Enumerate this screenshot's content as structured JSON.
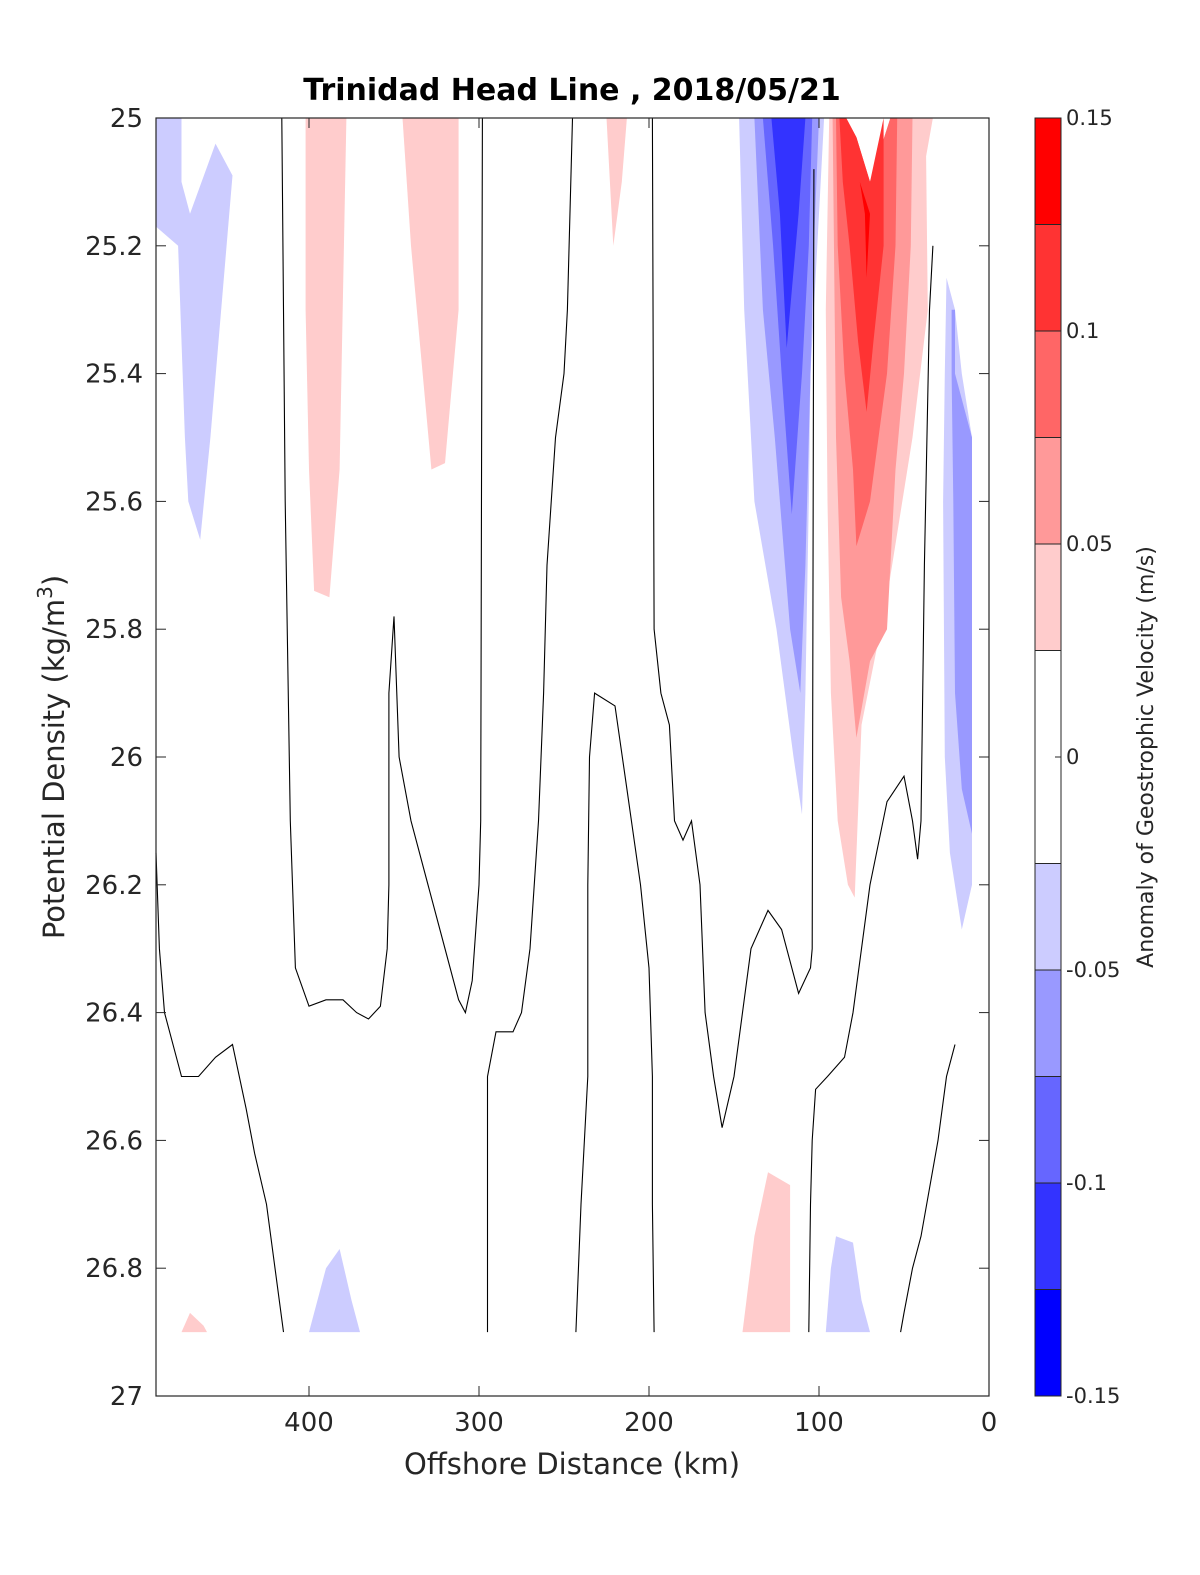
{
  "chart_data": {
    "type": "contour",
    "title": "Trinidad Head Line , 2018/05/21",
    "xlabel": "Offshore Distance (km)",
    "ylabel": "Potential Density (kg/m",
    "ylabel_sup": "3",
    "ylabel_close": ")",
    "xlim": [
      490,
      0
    ],
    "xdirection": "reversed",
    "ylim": [
      25,
      27
    ],
    "ydirection": "reversed",
    "xticks": [
      400,
      300,
      200,
      100,
      0
    ],
    "yticks": [
      25,
      25.2,
      25.4,
      25.6,
      25.8,
      26,
      26.2,
      26.4,
      26.6,
      26.8,
      27
    ],
    "xtick_labels": [
      "400",
      "300",
      "200",
      "100",
      "0"
    ],
    "ytick_labels": [
      "25",
      "25.2",
      "25.4",
      "25.6",
      "25.8",
      "26",
      "26.2",
      "26.4",
      "26.6",
      "26.8",
      "27"
    ],
    "colorbar": {
      "label": "Anomaly of Geostrophic Velocity (m/s)",
      "range": [
        -0.15,
        0.15
      ],
      "ticks": [
        0.15,
        0.1,
        0.05,
        0,
        -0.05,
        -0.1,
        -0.15
      ],
      "tick_labels": [
        "0.15",
        "0.1",
        "0.05",
        "0",
        "-0.05",
        "-0.1",
        "-0.15"
      ],
      "levels": [
        {
          "from": 0.125,
          "to": 0.15,
          "color": "#ff0000"
        },
        {
          "from": 0.1,
          "to": 0.125,
          "color": "#ff3333"
        },
        {
          "from": 0.075,
          "to": 0.1,
          "color": "#ff6666"
        },
        {
          "from": 0.05,
          "to": 0.075,
          "color": "#ff9999"
        },
        {
          "from": 0.025,
          "to": 0.05,
          "color": "#ffcccc"
        },
        {
          "from": -0.025,
          "to": 0.025,
          "color": "#ffffff"
        },
        {
          "from": -0.05,
          "to": -0.025,
          "color": "#ccccff"
        },
        {
          "from": -0.075,
          "to": -0.05,
          "color": "#9999ff"
        },
        {
          "from": -0.1,
          "to": -0.075,
          "color": "#6666ff"
        },
        {
          "from": -0.125,
          "to": -0.1,
          "color": "#3333ff"
        },
        {
          "from": -0.15,
          "to": -0.125,
          "color": "#0000ff"
        }
      ]
    },
    "regions": [
      {
        "level": -0.0375,
        "points": [
          [
            490,
            25.0
          ],
          [
            475,
            25.0
          ],
          [
            475,
            25.1
          ],
          [
            470,
            25.15
          ],
          [
            455,
            25.04
          ],
          [
            445,
            25.09
          ],
          [
            458,
            25.5
          ],
          [
            464,
            25.66
          ],
          [
            471,
            25.6
          ],
          [
            473,
            25.5
          ],
          [
            477,
            25.2
          ],
          [
            490,
            25.17
          ]
        ]
      },
      {
        "level": 0.0375,
        "points": [
          [
            402,
            25.0
          ],
          [
            378,
            25.0
          ],
          [
            382,
            25.55
          ],
          [
            388,
            25.75
          ],
          [
            397,
            25.74
          ],
          [
            400,
            25.55
          ],
          [
            402,
            25.3
          ]
        ]
      },
      {
        "level": 0.0375,
        "points": [
          [
            345,
            25.0
          ],
          [
            312,
            25.0
          ],
          [
            312,
            25.3
          ],
          [
            320,
            25.54
          ],
          [
            328,
            25.55
          ],
          [
            340,
            25.2
          ]
        ]
      },
      {
        "level": 0.0375,
        "points": [
          [
            225,
            25.0
          ],
          [
            213,
            25.0
          ],
          [
            216,
            25.1
          ],
          [
            221,
            25.2
          ],
          [
            223,
            25.1
          ]
        ]
      },
      {
        "level": -0.0375,
        "points": [
          [
            147,
            25.0
          ],
          [
            97,
            25.0
          ],
          [
            101,
            25.2
          ],
          [
            105,
            25.4
          ],
          [
            106,
            25.6
          ],
          [
            108,
            25.9
          ],
          [
            110,
            26.09
          ],
          [
            115,
            26.0
          ],
          [
            125,
            25.8
          ],
          [
            138,
            25.6
          ],
          [
            144,
            25.3
          ]
        ]
      },
      {
        "level": -0.0625,
        "points": [
          [
            138,
            25.0
          ],
          [
            100,
            25.0
          ],
          [
            103,
            25.2
          ],
          [
            106,
            25.5
          ],
          [
            108,
            25.7
          ],
          [
            111,
            25.9
          ],
          [
            117,
            25.8
          ],
          [
            126,
            25.5
          ],
          [
            133,
            25.3
          ]
        ]
      },
      {
        "level": -0.0875,
        "points": [
          [
            133,
            25.0
          ],
          [
            104,
            25.0
          ],
          [
            106,
            25.2
          ],
          [
            110,
            25.4
          ],
          [
            116,
            25.62
          ],
          [
            122,
            25.4
          ],
          [
            127,
            25.2
          ]
        ]
      },
      {
        "level": -0.1125,
        "points": [
          [
            128,
            25.0
          ],
          [
            108,
            25.0
          ],
          [
            112,
            25.15
          ],
          [
            119,
            25.36
          ],
          [
            123,
            25.15
          ]
        ]
      },
      {
        "level": 0.0375,
        "points": [
          [
            94,
            25.0
          ],
          [
            88,
            25.0
          ],
          [
            78,
            25.03
          ],
          [
            70,
            25.1
          ],
          [
            58,
            25.0
          ],
          [
            33,
            25.0
          ],
          [
            37,
            25.06
          ],
          [
            36,
            25.3
          ],
          [
            45,
            25.5
          ],
          [
            60,
            25.75
          ],
          [
            75,
            25.95
          ],
          [
            79,
            26.22
          ],
          [
            83,
            26.2
          ],
          [
            89,
            26.1
          ],
          [
            93,
            25.9
          ],
          [
            95,
            25.6
          ],
          [
            96,
            25.3
          ]
        ]
      },
      {
        "level": 0.0625,
        "points": [
          [
            92,
            25.0
          ],
          [
            88,
            25.0
          ],
          [
            78,
            25.03
          ],
          [
            70,
            25.1
          ],
          [
            58,
            25.0
          ],
          [
            45,
            25.0
          ],
          [
            46,
            25.2
          ],
          [
            50,
            25.4
          ],
          [
            55,
            25.55
          ],
          [
            60,
            25.8
          ],
          [
            70,
            25.85
          ],
          [
            78,
            25.97
          ],
          [
            82,
            25.85
          ],
          [
            87,
            25.75
          ],
          [
            90,
            25.5
          ]
        ]
      },
      {
        "level": 0.0875,
        "points": [
          [
            90,
            25.0
          ],
          [
            84,
            25.0
          ],
          [
            78,
            25.03
          ],
          [
            70,
            25.1
          ],
          [
            58,
            25.0
          ],
          [
            54,
            25.0
          ],
          [
            55,
            25.2
          ],
          [
            60,
            25.4
          ],
          [
            70,
            25.6
          ],
          [
            78,
            25.67
          ],
          [
            80,
            25.55
          ],
          [
            85,
            25.4
          ],
          [
            89,
            25.2
          ]
        ]
      },
      {
        "level": 0.1125,
        "points": [
          [
            88,
            25.0
          ],
          [
            84,
            25.0
          ],
          [
            78,
            25.03
          ],
          [
            70,
            25.1
          ],
          [
            62,
            25.0
          ],
          [
            62,
            25.2
          ],
          [
            68,
            25.35
          ],
          [
            72,
            25.46
          ],
          [
            77,
            25.35
          ],
          [
            82,
            25.2
          ],
          [
            86,
            25.1
          ]
        ]
      },
      {
        "level": 0.1375,
        "points": [
          [
            76,
            25.1
          ],
          [
            70,
            25.15
          ],
          [
            72,
            25.25
          ],
          [
            73,
            25.15
          ]
        ]
      },
      {
        "level": -0.0375,
        "points": [
          [
            25,
            25.25
          ],
          [
            20,
            25.3
          ],
          [
            16,
            25.4
          ],
          [
            10,
            25.5
          ],
          [
            10,
            26.2
          ],
          [
            16,
            26.27
          ],
          [
            23,
            26.15
          ],
          [
            26,
            26.0
          ],
          [
            27,
            25.6
          ],
          [
            26,
            25.4
          ]
        ]
      },
      {
        "level": -0.0625,
        "points": [
          [
            22,
            25.3
          ],
          [
            20,
            25.3
          ],
          [
            20,
            25.4
          ],
          [
            10,
            25.5
          ],
          [
            10,
            26.12
          ],
          [
            16,
            26.05
          ],
          [
            20,
            25.9
          ],
          [
            21,
            25.6
          ],
          [
            22,
            25.4
          ]
        ]
      },
      {
        "level": -0.0375,
        "points": [
          [
            400,
            26.9
          ],
          [
            370,
            26.9
          ],
          [
            375,
            26.85
          ],
          [
            382,
            26.77
          ],
          [
            390,
            26.8
          ]
        ]
      },
      {
        "level": 0.0375,
        "points": [
          [
            475,
            26.9
          ],
          [
            460,
            26.9
          ],
          [
            462,
            26.89
          ],
          [
            470,
            26.87
          ]
        ]
      },
      {
        "level": 0.0375,
        "points": [
          [
            145,
            26.9
          ],
          [
            117,
            26.9
          ],
          [
            117,
            26.67
          ],
          [
            130,
            26.65
          ],
          [
            138,
            26.75
          ]
        ]
      },
      {
        "level": -0.0375,
        "points": [
          [
            96,
            26.9
          ],
          [
            70,
            26.9
          ],
          [
            75,
            26.85
          ],
          [
            80,
            26.76
          ],
          [
            90,
            26.75
          ],
          [
            93,
            26.8
          ]
        ]
      }
    ],
    "zero_contours": [
      [
        [
          490,
          26.15
        ],
        [
          488,
          26.3
        ],
        [
          485,
          26.4
        ],
        [
          475,
          26.5
        ],
        [
          465,
          26.5
        ],
        [
          455,
          26.47
        ],
        [
          445,
          26.45
        ],
        [
          437,
          26.55
        ],
        [
          432,
          26.62
        ],
        [
          425,
          26.7
        ],
        [
          415,
          26.9
        ]
      ],
      [
        [
          416,
          25.0
        ],
        [
          414,
          25.6
        ],
        [
          411,
          26.1
        ],
        [
          408,
          26.33
        ],
        [
          400,
          26.39
        ],
        [
          390,
          26.38
        ],
        [
          380,
          26.38
        ],
        [
          372,
          26.4
        ],
        [
          365,
          26.41
        ],
        [
          358,
          26.39
        ],
        [
          354,
          26.3
        ],
        [
          353,
          26.2
        ],
        [
          353,
          25.9
        ],
        [
          350,
          25.78
        ],
        [
          347,
          26.0
        ],
        [
          340,
          26.1
        ],
        [
          330,
          26.2
        ],
        [
          320,
          26.3
        ],
        [
          312,
          26.38
        ],
        [
          308,
          26.4
        ],
        [
          304,
          26.35
        ],
        [
          300,
          26.2
        ],
        [
          299,
          26.1
        ],
        [
          298,
          25.0
        ]
      ],
      [
        [
          295,
          26.9
        ],
        [
          295,
          26.7
        ],
        [
          295,
          26.5
        ],
        [
          290,
          26.43
        ],
        [
          280,
          26.43
        ],
        [
          275,
          26.4
        ],
        [
          270,
          26.3
        ],
        [
          265,
          26.1
        ],
        [
          262,
          25.9
        ],
        [
          260,
          25.7
        ],
        [
          255,
          25.5
        ],
        [
          250,
          25.4
        ],
        [
          248,
          25.3
        ],
        [
          245,
          25.0
        ]
      ],
      [
        [
          243,
          26.9
        ],
        [
          240,
          26.7
        ],
        [
          236,
          26.5
        ],
        [
          236,
          26.2
        ],
        [
          235,
          26.0
        ],
        [
          232,
          25.9
        ],
        [
          220,
          25.92
        ],
        [
          213,
          26.05
        ],
        [
          205,
          26.2
        ],
        [
          200,
          26.33
        ],
        [
          198,
          26.5
        ],
        [
          198,
          26.7
        ],
        [
          197,
          26.9
        ]
      ],
      [
        [
          198,
          25.0
        ],
        [
          197,
          25.8
        ],
        [
          193,
          25.9
        ],
        [
          188,
          25.95
        ],
        [
          185,
          26.1
        ],
        [
          180,
          26.13
        ],
        [
          175,
          26.1
        ],
        [
          170,
          26.2
        ],
        [
          167,
          26.4
        ],
        [
          162,
          26.5
        ],
        [
          157,
          26.58
        ],
        [
          150,
          26.5
        ],
        [
          145,
          26.4
        ],
        [
          140,
          26.3
        ],
        [
          130,
          26.24
        ],
        [
          122,
          26.27
        ],
        [
          112,
          26.37
        ],
        [
          105,
          26.33
        ],
        [
          104,
          26.3
        ],
        [
          103,
          25.08
        ]
      ],
      [
        [
          106,
          26.9
        ],
        [
          105,
          26.7
        ],
        [
          104,
          26.6
        ],
        [
          102,
          26.52
        ],
        [
          95,
          26.5
        ],
        [
          85,
          26.47
        ],
        [
          80,
          26.4
        ],
        [
          75,
          26.3
        ],
        [
          70,
          26.2
        ],
        [
          60,
          26.07
        ],
        [
          50,
          26.03
        ],
        [
          45,
          26.1
        ],
        [
          42,
          26.16
        ],
        [
          40,
          26.1
        ],
        [
          38,
          25.7
        ],
        [
          35,
          25.3
        ],
        [
          33,
          25.2
        ]
      ],
      [
        [
          52,
          26.9
        ],
        [
          50,
          26.87
        ],
        [
          45,
          26.8
        ],
        [
          40,
          26.75
        ],
        [
          30,
          26.6
        ],
        [
          25,
          26.5
        ],
        [
          20,
          26.45
        ]
      ]
    ]
  }
}
